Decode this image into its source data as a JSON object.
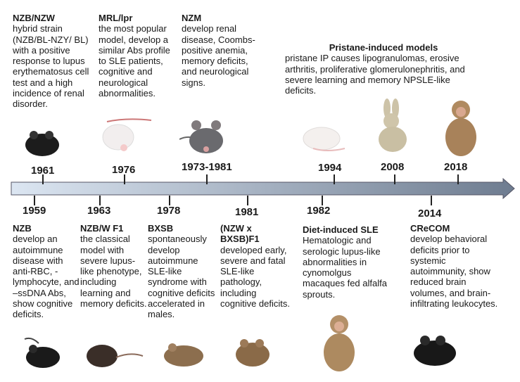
{
  "top_events": [
    {
      "year": "1961",
      "title": "NZB/NZW",
      "text": "hybrid strain (NZB/BL-NZY/ BL) with a positive response to lupus erythematosus cell test and a high incidence of renal disorder.",
      "animal": "black-mouse"
    },
    {
      "year": "1976",
      "title": "MRL/lpr",
      "text": "the most popular model, develop a similar Abs profile to SLE patients, cognitive and neurological abnormalities.",
      "animal": "white-mouse"
    },
    {
      "year": "1973-1981",
      "title": "NZM",
      "text": "develop renal disease, Coombs-positive anemia, memory deficits, and neurological signs.",
      "animal": "grey-mouse"
    },
    {
      "year": "1994",
      "animal": "white-mouse"
    },
    {
      "year": "2008",
      "animal": "rabbit"
    },
    {
      "year": "2018",
      "animal": "monkey"
    }
  ],
  "pristane": {
    "title": "Pristane-induced models",
    "text": "pristane IP causes lipogranulomas, erosive arthritis, proliferative glomerulonephritis, and severe learning and memory NPSLE-like deficits."
  },
  "bottom_events": [
    {
      "year": "1959",
      "title": "NZB",
      "text": "develop an autoimmune disease with anti-RBC, -lymphocyte, and –ssDNA Abs, show cognitive deficits.",
      "animal": "black-mouse"
    },
    {
      "year": "1963",
      "title": "NZB/W F1",
      "text": "the classical model with severe lupus-like phenotype, including learning and memory deficits.",
      "animal": "dark-mouse"
    },
    {
      "year": "1978",
      "title": "BXSB",
      "text": "spontaneously develop autoimmune SLE-like syndrome with cognitive deficits accelerated in males.",
      "animal": "brown-mouse"
    },
    {
      "year": "1981",
      "title": "(NZW x BXSB)F1",
      "text": "developed early, severe and fatal SLE-like pathology, including cognitive deficits.",
      "animal": "brown-mouse"
    },
    {
      "year": "1982",
      "title": "Diet-induced SLE",
      "text": "Hematologic and serologic lupus-like abnormalities in cynomolgus macaques fed alfalfa sprouts.",
      "animal": "monkey"
    },
    {
      "year": "2014",
      "title": "CReCOM",
      "text": "develop behavioral deficits prior to systemic autoimmunity, show reduced brain volumes, and brain-infiltrating leukocytes.",
      "animal": "black-mouse"
    }
  ],
  "colors": {
    "arrow_start": "#dce6f2",
    "arrow_end": "#6e7c90"
  }
}
